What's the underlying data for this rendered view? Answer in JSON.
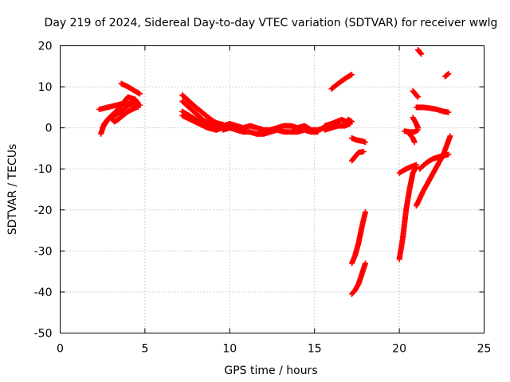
{
  "chart_data": {
    "type": "scatter",
    "title": "Day 219 of 2024, Sidereal Day-to-day VTEC variation (SDTVAR) for receiver wwlg",
    "xlabel": "GPS time / hours",
    "ylabel": "SDTVAR / TECUs",
    "xlim": [
      0,
      25
    ],
    "ylim": [
      -50,
      20
    ],
    "xticks": [
      0,
      5,
      10,
      15,
      20,
      25
    ],
    "yticks": [
      -50,
      -40,
      -30,
      -20,
      -10,
      0,
      10,
      20
    ],
    "grid": true,
    "marker": "plus",
    "color": "#ff0000",
    "series": [
      {
        "segments": [
          [
            [
              2.3,
              4.5
            ],
            [
              2.8,
              5.0
            ],
            [
              3.3,
              5.5
            ],
            [
              3.8,
              6.0
            ],
            [
              4.3,
              6.0
            ],
            [
              4.7,
              5.5
            ]
          ],
          [
            [
              2.4,
              -1.5
            ],
            [
              2.6,
              1.0
            ],
            [
              2.9,
              2.5
            ],
            [
              3.3,
              4.0
            ],
            [
              3.7,
              6.0
            ],
            [
              4.0,
              7.5
            ],
            [
              4.4,
              7.0
            ],
            [
              4.6,
              6.0
            ]
          ],
          [
            [
              2.5,
              0.0
            ],
            [
              2.8,
              2.0
            ],
            [
              3.2,
              3.0
            ],
            [
              3.6,
              4.0
            ],
            [
              4.0,
              5.5
            ],
            [
              4.4,
              6.0
            ],
            [
              4.6,
              5.0
            ]
          ],
          [
            [
              3.0,
              2.5
            ],
            [
              3.2,
              1.5
            ],
            [
              3.4,
              2.0
            ],
            [
              3.7,
              3.0
            ],
            [
              4.0,
              4.0
            ],
            [
              4.5,
              5.0
            ]
          ],
          [
            [
              3.6,
              10.8
            ],
            [
              4.0,
              10.0
            ],
            [
              4.4,
              9.0
            ],
            [
              4.7,
              8.3
            ]
          ],
          [
            [
              7.2,
              8.0
            ],
            [
              7.6,
              6.5
            ],
            [
              8.0,
              5.0
            ],
            [
              8.3,
              4.0
            ],
            [
              8.6,
              3.0
            ],
            [
              8.9,
              2.0
            ],
            [
              9.2,
              1.2
            ],
            [
              9.6,
              0.8
            ]
          ],
          [
            [
              7.2,
              6.5
            ],
            [
              7.6,
              5.0
            ],
            [
              8.0,
              3.5
            ],
            [
              8.4,
              2.0
            ],
            [
              8.8,
              1.0
            ],
            [
              9.2,
              0.5
            ],
            [
              9.6,
              0.5
            ]
          ],
          [
            [
              7.2,
              4.0
            ],
            [
              7.6,
              3.0
            ],
            [
              8.0,
              2.0
            ],
            [
              8.4,
              1.0
            ],
            [
              8.8,
              0.0
            ],
            [
              9.2,
              -0.5
            ],
            [
              9.6,
              0.0
            ]
          ],
          [
            [
              7.2,
              3.0
            ],
            [
              7.7,
              2.0
            ],
            [
              8.2,
              1.0
            ],
            [
              8.7,
              0.0
            ],
            [
              9.2,
              -0.5
            ]
          ],
          [
            [
              9.6,
              0.5
            ],
            [
              10.0,
              1.0
            ],
            [
              10.4,
              0.5
            ],
            [
              10.8,
              0.0
            ],
            [
              11.2,
              0.5
            ],
            [
              11.6,
              0.0
            ],
            [
              12.0,
              -0.5
            ],
            [
              12.4,
              -0.5
            ],
            [
              12.8,
              0.0
            ],
            [
              13.2,
              0.5
            ],
            [
              13.6,
              0.5
            ],
            [
              14.0,
              0.0
            ],
            [
              14.4,
              0.5
            ],
            [
              14.8,
              -0.5
            ],
            [
              15.2,
              -0.5
            ],
            [
              15.6,
              0.0
            ]
          ],
          [
            [
              9.6,
              -0.5
            ],
            [
              10.0,
              0.0
            ],
            [
              10.4,
              -0.5
            ],
            [
              10.8,
              -1.0
            ],
            [
              11.2,
              -1.0
            ],
            [
              11.6,
              -1.5
            ],
            [
              12.0,
              -1.5
            ],
            [
              12.4,
              -1.0
            ],
            [
              12.8,
              -0.5
            ],
            [
              13.2,
              -1.0
            ],
            [
              13.6,
              -1.0
            ],
            [
              14.0,
              -1.0
            ],
            [
              14.4,
              -0.5
            ],
            [
              14.8,
              -1.0
            ],
            [
              15.2,
              -1.0
            ]
          ],
          [
            [
              15.6,
              0.5
            ],
            [
              16.0,
              1.0
            ],
            [
              16.3,
              1.5
            ],
            [
              16.6,
              2.0
            ],
            [
              16.9,
              1.5
            ],
            [
              17.0,
              2.0
            ],
            [
              17.2,
              1.5
            ]
          ],
          [
            [
              15.6,
              -0.5
            ],
            [
              16.0,
              0.0
            ],
            [
              16.4,
              0.5
            ],
            [
              16.8,
              0.5
            ],
            [
              17.1,
              1.0
            ]
          ],
          [
            [
              16.0,
              9.5
            ],
            [
              16.4,
              10.8
            ],
            [
              16.8,
              12.0
            ],
            [
              17.2,
              13.0
            ]
          ],
          [
            [
              17.2,
              -2.5
            ],
            [
              17.5,
              -3.0
            ],
            [
              17.8,
              -3.2
            ],
            [
              18.0,
              -3.5
            ]
          ],
          [
            [
              17.2,
              -8.0
            ],
            [
              17.4,
              -7.0
            ],
            [
              17.6,
              -6.0
            ],
            [
              17.9,
              -5.8
            ]
          ],
          [
            [
              17.2,
              -33.0
            ],
            [
              17.4,
              -31.0
            ],
            [
              17.6,
              -28.0
            ],
            [
              17.8,
              -24.0
            ],
            [
              18.0,
              -20.5
            ]
          ],
          [
            [
              17.2,
              -40.5
            ],
            [
              17.4,
              -39.5
            ],
            [
              17.6,
              -38.0
            ],
            [
              17.8,
              -35.5
            ],
            [
              18.0,
              -33.0
            ]
          ],
          [
            [
              20.0,
              -32.0
            ],
            [
              20.2,
              -27.0
            ],
            [
              20.4,
              -20.0
            ],
            [
              20.6,
              -15.0
            ],
            [
              20.8,
              -11.0
            ],
            [
              21.0,
              -9.5
            ]
          ],
          [
            [
              20.0,
              -11.0
            ],
            [
              20.4,
              -10.0
            ],
            [
              20.7,
              -9.5
            ],
            [
              21.0,
              -9.0
            ]
          ],
          [
            [
              20.3,
              -0.8
            ],
            [
              20.6,
              -1.0
            ],
            [
              20.9,
              -1.0
            ],
            [
              21.1,
              -0.5
            ]
          ],
          [
            [
              20.6,
              -1.5
            ],
            [
              20.8,
              -2.5
            ],
            [
              20.9,
              -3.5
            ]
          ],
          [
            [
              20.8,
              2.5
            ],
            [
              21.0,
              1.0
            ],
            [
              21.1,
              0.0
            ]
          ],
          [
            [
              20.8,
              9.0
            ],
            [
              21.0,
              8.0
            ],
            [
              21.1,
              7.5
            ]
          ],
          [
            [
              21.0,
              5.0
            ],
            [
              21.4,
              5.0
            ],
            [
              21.8,
              4.8
            ],
            [
              22.2,
              4.5
            ],
            [
              22.6,
              4.0
            ],
            [
              22.9,
              3.8
            ]
          ],
          [
            [
              21.0,
              -19.0
            ],
            [
              21.4,
              -15.5
            ],
            [
              21.8,
              -12.5
            ],
            [
              22.2,
              -9.5
            ],
            [
              22.6,
              -6.5
            ],
            [
              23.0,
              -2.0
            ]
          ],
          [
            [
              21.2,
              -10.0
            ],
            [
              21.6,
              -8.5
            ],
            [
              22.0,
              -7.5
            ],
            [
              22.4,
              -7.0
            ],
            [
              22.9,
              -6.5
            ]
          ],
          [
            [
              21.1,
              19.0
            ],
            [
              21.3,
              18.0
            ]
          ],
          [
            [
              22.7,
              12.5
            ],
            [
              22.9,
              13.2
            ]
          ]
        ]
      }
    ]
  }
}
